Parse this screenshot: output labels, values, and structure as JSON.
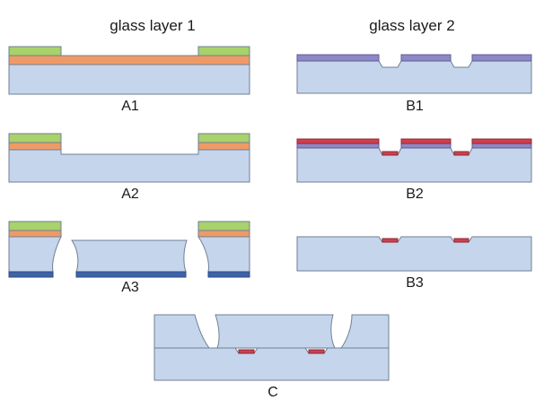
{
  "headers": {
    "left": "glass layer 1",
    "right": "glass layer 2"
  },
  "steps": {
    "a1": "A1",
    "a2": "A2",
    "a3": "A3",
    "b1": "B1",
    "b2": "B2",
    "b3": "B3",
    "c": "C"
  },
  "colors": {
    "glass": "#c5d6ec",
    "orange_layer": "#ef9a66",
    "green_layer": "#a8d26a",
    "purple_layer": "#8e89c6",
    "red_layer": "#cf3f4f",
    "blue_layer": "#3f63a9"
  }
}
